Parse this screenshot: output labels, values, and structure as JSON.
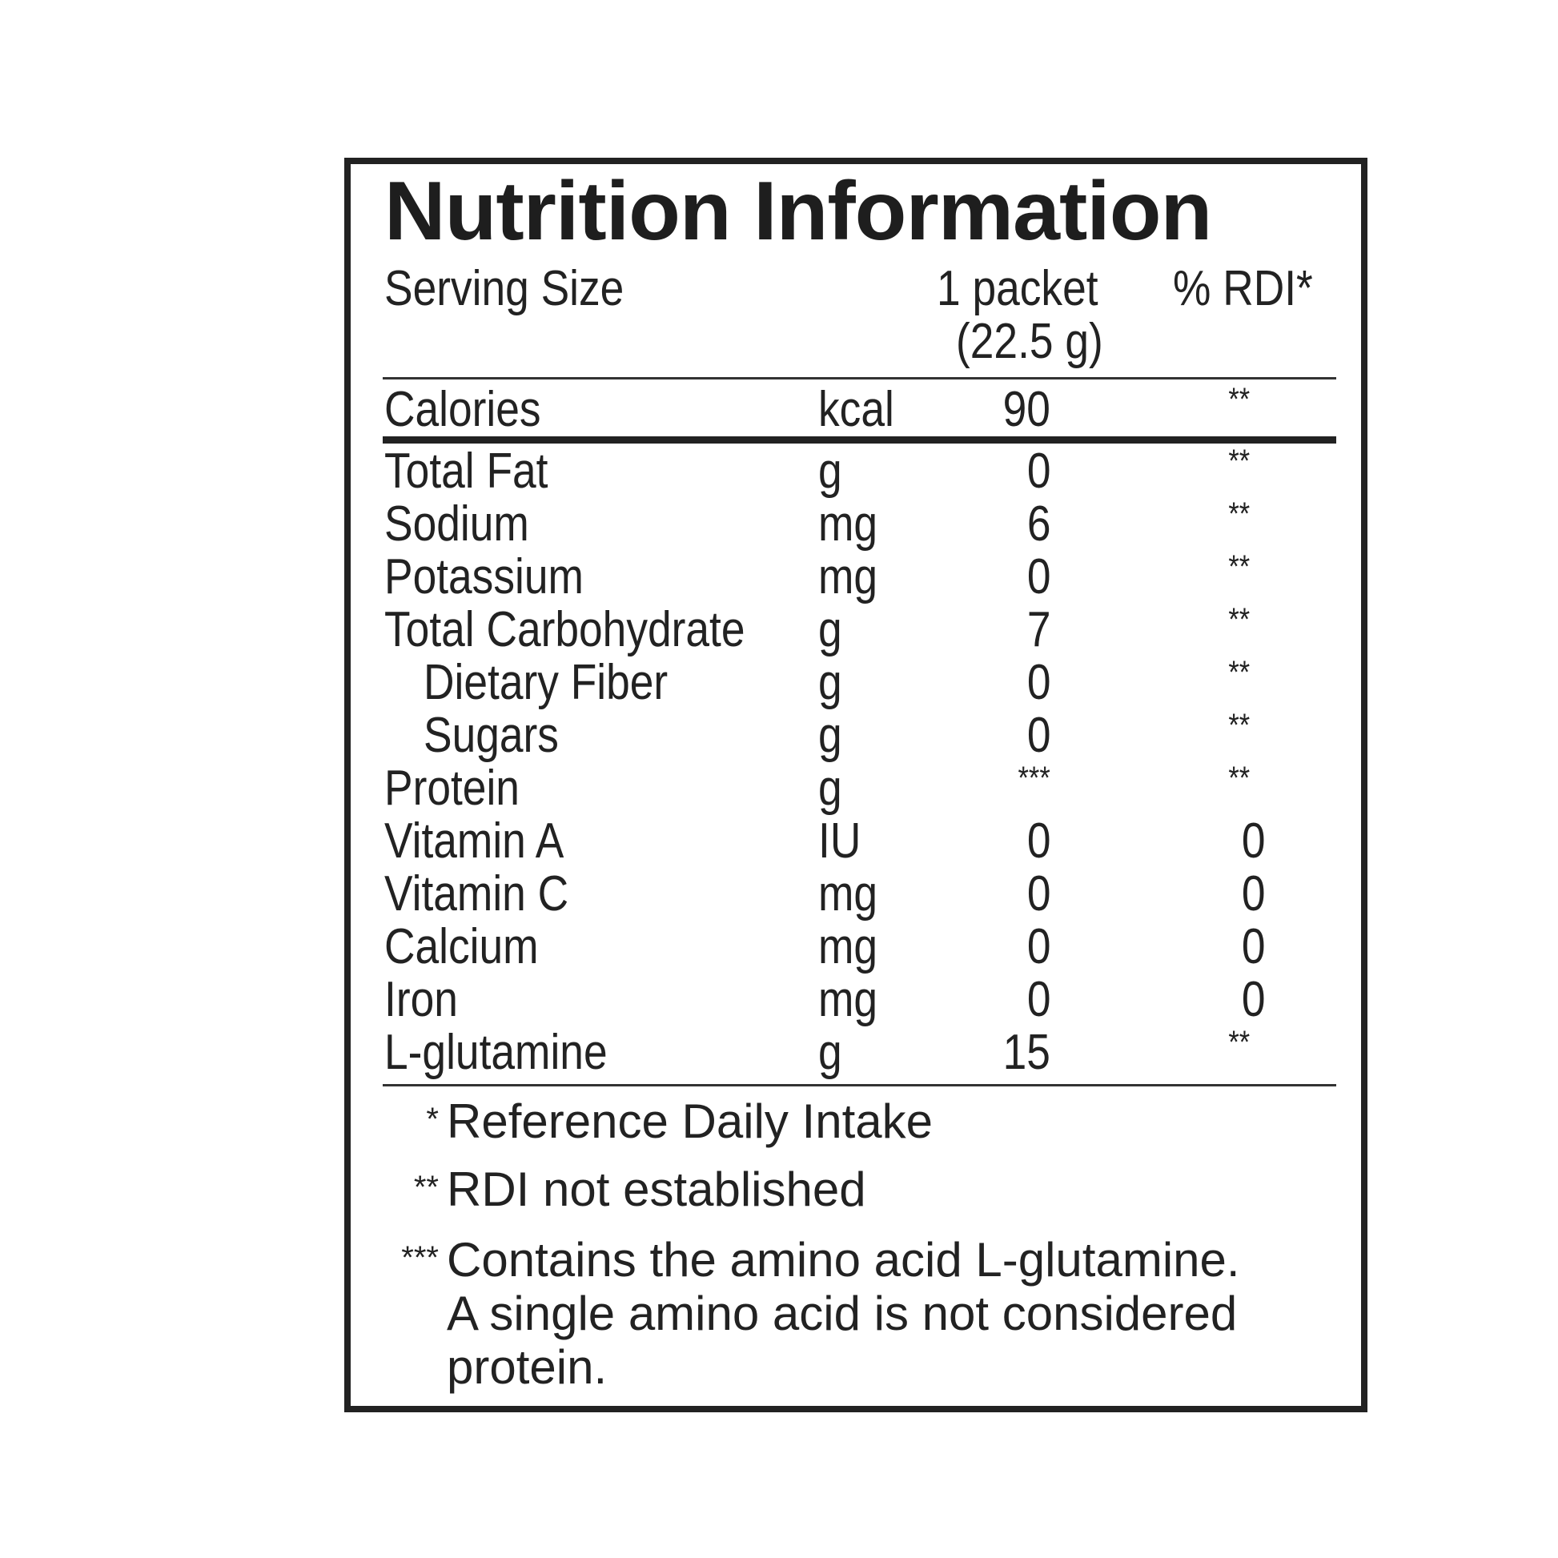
{
  "title": "Nutrition Information",
  "serving": {
    "label": "Serving Size",
    "amount_line1": "1 packet",
    "amount_line2": "(22.5 g)",
    "rdi_header": "% RDI*"
  },
  "rows": [
    {
      "name": "Calories",
      "unit": "kcal",
      "amount": "90",
      "rdi": "**"
    },
    {
      "name": "Total Fat",
      "unit": "g",
      "amount": "0",
      "rdi": "**"
    },
    {
      "name": "Sodium",
      "unit": "mg",
      "amount": "6",
      "rdi": "**"
    },
    {
      "name": "Potassium",
      "unit": "mg",
      "amount": "0",
      "rdi": "**"
    },
    {
      "name": "Total Carbohydrate",
      "unit": "g",
      "amount": "7",
      "rdi": "**"
    },
    {
      "name": "Dietary Fiber",
      "unit": "g",
      "amount": "0",
      "rdi": "**"
    },
    {
      "name": "Sugars",
      "unit": "g",
      "amount": "0",
      "rdi": "**"
    },
    {
      "name": "Protein",
      "unit": "g",
      "amount": "***",
      "rdi": "**"
    },
    {
      "name": "Vitamin A",
      "unit": "IU",
      "amount": "0",
      "rdi": "0"
    },
    {
      "name": "Vitamin C",
      "unit": "mg",
      "amount": "0",
      "rdi": "0"
    },
    {
      "name": "Calcium",
      "unit": "mg",
      "amount": "0",
      "rdi": "0"
    },
    {
      "name": "Iron",
      "unit": "mg",
      "amount": "0",
      "rdi": "0"
    },
    {
      "name": "L-glutamine",
      "unit": "g",
      "amount": "15",
      "rdi": "**"
    }
  ],
  "footnotes": [
    {
      "mark": "*",
      "lines": [
        "Reference Daily Intake"
      ]
    },
    {
      "mark": "**",
      "lines": [
        "RDI not established"
      ]
    },
    {
      "mark": "***",
      "lines": [
        "Contains the amino acid L-glutamine.",
        "A single amino acid is not considered",
        "protein."
      ]
    }
  ]
}
